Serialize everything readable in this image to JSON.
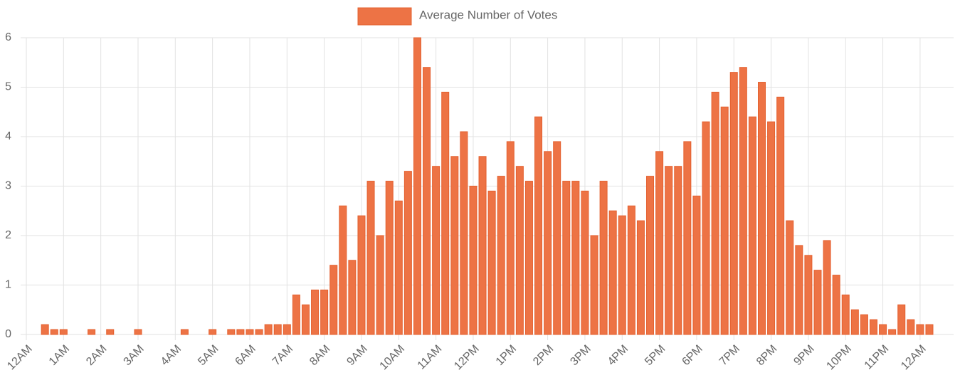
{
  "chart_data": {
    "type": "bar",
    "series": [
      {
        "name": "Average Number of Votes",
        "color": "#ed7345",
        "border": "#e4602f",
        "x": [
          0.5,
          0.75,
          1,
          1.75,
          2.25,
          3,
          4.25,
          5,
          5.5,
          5.75,
          6,
          6.25,
          6.5,
          6.75,
          7,
          7.25,
          7.5,
          7.75,
          8,
          8.25,
          8.5,
          8.75,
          9,
          9.25,
          9.5,
          9.75,
          10,
          10.25,
          10.5,
          10.75,
          11,
          11.25,
          11.5,
          11.75,
          12,
          12.25,
          12.5,
          12.75,
          13,
          13.25,
          13.5,
          13.75,
          14,
          14.25,
          14.5,
          14.75,
          15,
          15.25,
          15.5,
          15.75,
          16,
          16.25,
          16.5,
          16.75,
          17,
          17.25,
          17.5,
          17.75,
          18,
          18.25,
          18.5,
          18.75,
          19,
          19.25,
          19.5,
          19.75,
          20,
          20.25,
          20.5,
          20.75,
          21,
          21.25,
          21.5,
          21.75,
          22,
          22.25,
          22.5,
          22.75,
          23,
          23.25,
          23.5,
          23.75,
          24,
          24.25
        ],
        "values": [
          0.2,
          0.1,
          0.1,
          0.1,
          0.1,
          0.1,
          0.1,
          0.1,
          0.1,
          0.1,
          0.1,
          0.1,
          0.2,
          0.2,
          0.2,
          0.8,
          0.6,
          0.9,
          0.9,
          1.4,
          2.6,
          1.5,
          2.4,
          3.1,
          2.0,
          3.1,
          2.7,
          3.3,
          6.0,
          5.4,
          3.4,
          4.9,
          3.6,
          4.1,
          3.0,
          3.6,
          2.9,
          3.2,
          3.9,
          3.4,
          3.1,
          4.4,
          3.7,
          3.9,
          3.1,
          3.1,
          2.9,
          2.0,
          3.1,
          2.5,
          2.4,
          2.6,
          2.3,
          3.2,
          3.7,
          3.4,
          3.4,
          3.9,
          2.8,
          4.3,
          4.9,
          4.6,
          5.3,
          5.4,
          4.4,
          5.1,
          4.3,
          4.8,
          2.3,
          1.8,
          1.6,
          1.3,
          1.9,
          1.2,
          0.8,
          0.5,
          0.4,
          0.3,
          0.2,
          0.1,
          0.6,
          0.3,
          0.2,
          0.2
        ]
      }
    ],
    "xlim": [
      0,
      24.9
    ],
    "xticks": [
      {
        "value": 0,
        "label": "12AM"
      },
      {
        "value": 1,
        "label": "1AM"
      },
      {
        "value": 2,
        "label": "2AM"
      },
      {
        "value": 3,
        "label": "3AM"
      },
      {
        "value": 4,
        "label": "4AM"
      },
      {
        "value": 5,
        "label": "5AM"
      },
      {
        "value": 6,
        "label": "6AM"
      },
      {
        "value": 7,
        "label": "7AM"
      },
      {
        "value": 8,
        "label": "8AM"
      },
      {
        "value": 9,
        "label": "9AM"
      },
      {
        "value": 10,
        "label": "10AM"
      },
      {
        "value": 11,
        "label": "11AM"
      },
      {
        "value": 12,
        "label": "12PM"
      },
      {
        "value": 13,
        "label": "1PM"
      },
      {
        "value": 14,
        "label": "2PM"
      },
      {
        "value": 15,
        "label": "3PM"
      },
      {
        "value": 16,
        "label": "4PM"
      },
      {
        "value": 17,
        "label": "5PM"
      },
      {
        "value": 18,
        "label": "6PM"
      },
      {
        "value": 19,
        "label": "7PM"
      },
      {
        "value": 20,
        "label": "8PM"
      },
      {
        "value": 21,
        "label": "9PM"
      },
      {
        "value": 22,
        "label": "10PM"
      },
      {
        "value": 23,
        "label": "11PM"
      },
      {
        "value": 24,
        "label": "12AM"
      }
    ],
    "ylim": [
      0,
      6
    ],
    "yticks": [
      0,
      1,
      2,
      3,
      4,
      5,
      6
    ],
    "grid": true,
    "legend": "top"
  }
}
